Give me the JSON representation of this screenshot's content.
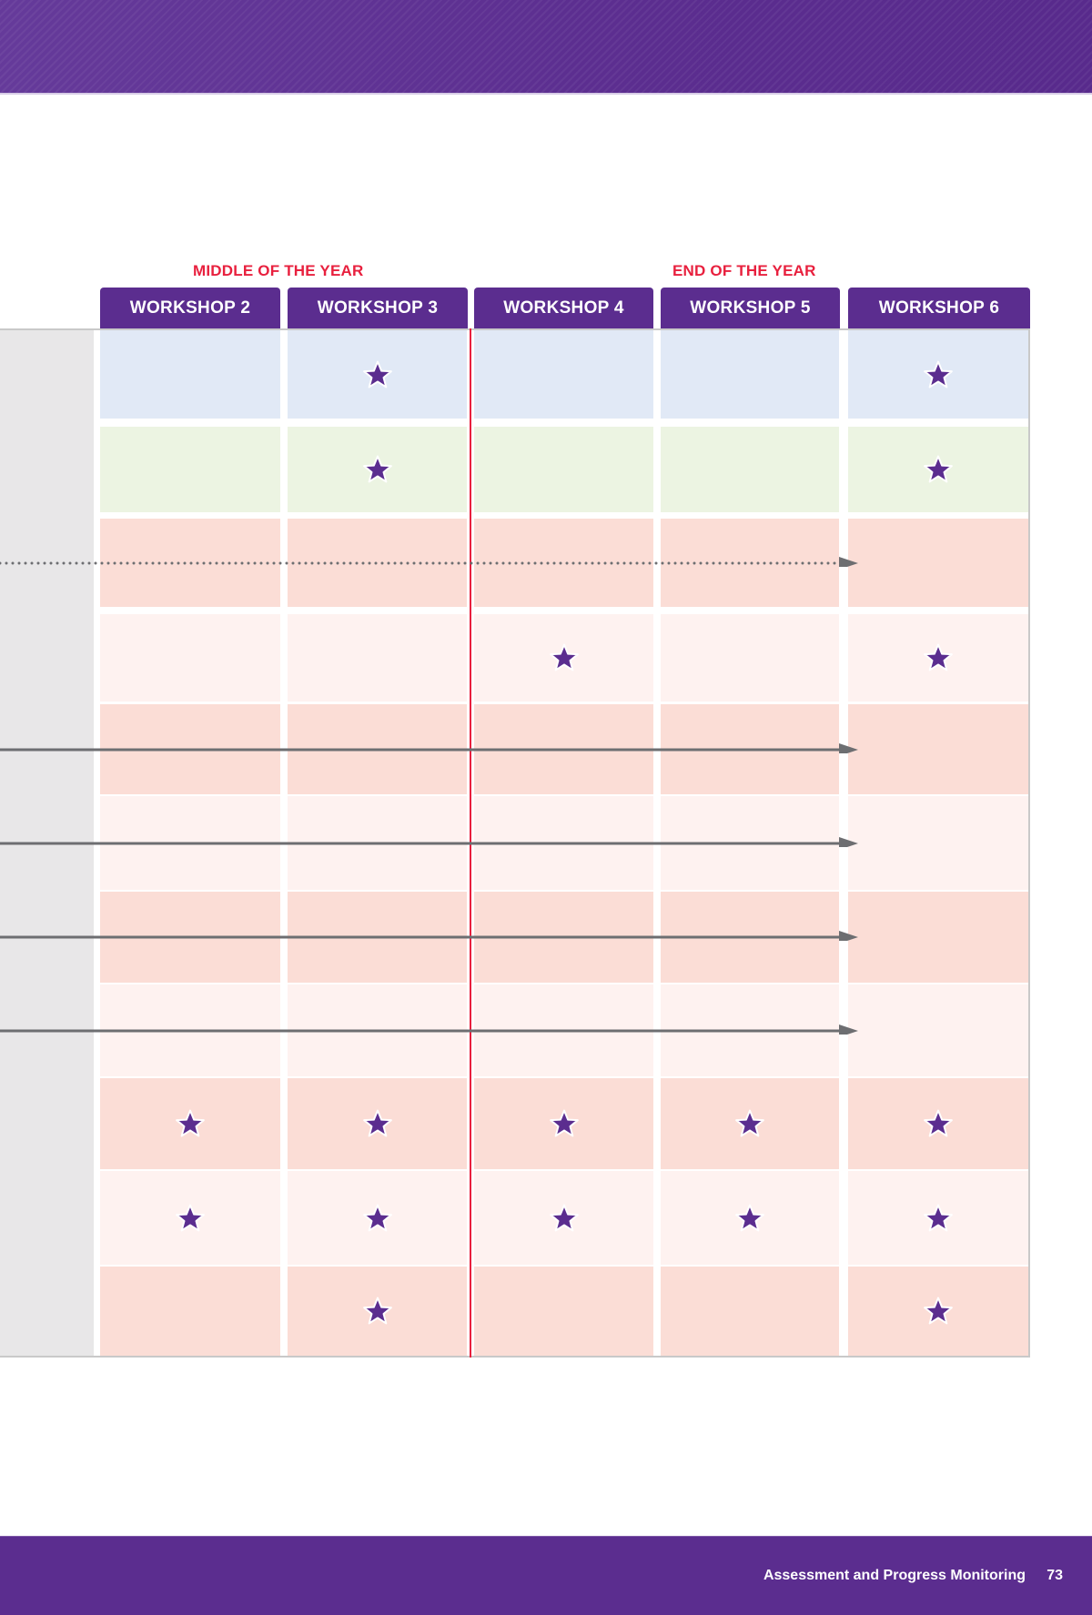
{
  "header": {
    "band_color": "#5b2d8f"
  },
  "period_labels": {
    "middle": "MIDDLE OF THE YEAR",
    "end": "END OF THE YEAR"
  },
  "columns": [
    {
      "label": "WORKSHOP 2"
    },
    {
      "label": "WORKSHOP 3"
    },
    {
      "label": "WORKSHOP 4"
    },
    {
      "label": "WORKSHOP 5"
    },
    {
      "label": "WORKSHOP 6"
    }
  ],
  "colors": {
    "accent_purple": "#5b2d8f",
    "label_red": "#e8203e",
    "row_blue": "#e1e9f6",
    "row_green": "#ecf4e2",
    "row_pink_dark": "#fbddd6",
    "row_pink_light": "#fef2f0",
    "label_col_gray": "#e8e7e8",
    "arrow_gray": "#6d6e71"
  },
  "rows": [
    {
      "color": "row_blue",
      "marks": [
        false,
        true,
        false,
        false,
        true
      ],
      "arrow": "none"
    },
    {
      "color": "row_green",
      "marks": [
        false,
        true,
        false,
        false,
        true
      ],
      "arrow": "none"
    },
    {
      "color": "row_pink_dark",
      "marks": [
        false,
        false,
        false,
        false,
        false
      ],
      "arrow": "dotted-to-workshop-6"
    },
    {
      "color": "row_pink_light",
      "marks": [
        false,
        false,
        true,
        false,
        true
      ],
      "arrow": "none"
    },
    {
      "color": "row_pink_dark",
      "marks": [
        false,
        false,
        false,
        false,
        false
      ],
      "arrow": "solid-to-workshop-6"
    },
    {
      "color": "row_pink_light",
      "marks": [
        false,
        false,
        false,
        false,
        false
      ],
      "arrow": "solid-to-workshop-6"
    },
    {
      "color": "row_pink_dark",
      "marks": [
        false,
        false,
        false,
        false,
        false
      ],
      "arrow": "solid-to-workshop-6"
    },
    {
      "color": "row_pink_light",
      "marks": [
        false,
        false,
        false,
        false,
        false
      ],
      "arrow": "solid-to-workshop-6"
    },
    {
      "color": "row_pink_dark",
      "marks": [
        true,
        true,
        true,
        true,
        true
      ],
      "arrow": "none"
    },
    {
      "color": "row_pink_light",
      "marks": [
        true,
        true,
        true,
        true,
        true
      ],
      "arrow": "none"
    },
    {
      "color": "row_pink_dark",
      "marks": [
        false,
        true,
        false,
        false,
        true
      ],
      "arrow": "none"
    }
  ],
  "icons": {
    "mark": "star-icon"
  },
  "footer": {
    "title": "Assessment and Progress Monitoring",
    "page_number": "73"
  }
}
